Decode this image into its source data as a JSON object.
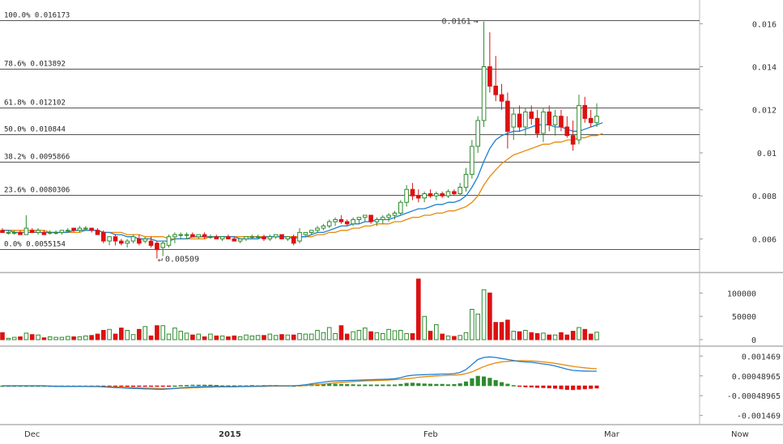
{
  "chart_data": {
    "type": "candlestick",
    "x_ticks": [
      "Dec",
      "2015",
      "Feb",
      "Mar",
      "Now"
    ],
    "price_axis": {
      "ylim": [
        0.0047,
        0.0168
      ],
      "ticks": [
        "0.016",
        "0.014",
        "0.012",
        "0.01",
        "0.008",
        "0.006"
      ]
    },
    "volume_axis": {
      "ylim": [
        0,
        130000
      ],
      "ticks": [
        "100000",
        "50000",
        "0"
      ]
    },
    "macd_axis": {
      "ylim": [
        -0.0018,
        0.0018
      ],
      "ticks": [
        "0.001469",
        "0.00048965",
        "-0.00048965",
        "-0.001469"
      ]
    },
    "fib_levels": [
      {
        "label": "100.0% 0.016173",
        "value": 0.016173
      },
      {
        "label": "78.6% 0.013892",
        "value": 0.013892
      },
      {
        "label": "61.8% 0.012102",
        "value": 0.012102
      },
      {
        "label": "50.0% 0.010844",
        "value": 0.010844
      },
      {
        "label": "38.2% 0.0095866",
        "value": 0.0095866
      },
      {
        "label": "23.6% 0.0080306",
        "value": 0.0080306
      },
      {
        "label": "0.0% 0.0055154",
        "value": 0.0055154
      }
    ],
    "annotations": {
      "high_label": "0.0161",
      "low_label": "0.00509"
    },
    "colors": {
      "up": "#2e8b2e",
      "down": "#dd1111",
      "ma_fast": "#1e7fd0",
      "ma_slow": "#e88a0c",
      "grid": "#444444"
    },
    "candles": [
      [
        0.0064,
        0.0065,
        0.0063,
        0.0063
      ],
      [
        0.0063,
        0.0064,
        0.0062,
        0.0063
      ],
      [
        0.0063,
        0.0064,
        0.0062,
        0.0063
      ],
      [
        0.0063,
        0.0064,
        0.0062,
        0.0062
      ],
      [
        0.0062,
        0.0071,
        0.0062,
        0.0065
      ],
      [
        0.0064,
        0.0065,
        0.0063,
        0.0063
      ],
      [
        0.0063,
        0.0065,
        0.0062,
        0.0064
      ],
      [
        0.0063,
        0.0064,
        0.0062,
        0.0062
      ],
      [
        0.0063,
        0.0064,
        0.0062,
        0.0063
      ],
      [
        0.0063,
        0.0064,
        0.0062,
        0.0063
      ],
      [
        0.0063,
        0.0064,
        0.0062,
        0.0064
      ],
      [
        0.0064,
        0.0065,
        0.0063,
        0.0064
      ],
      [
        0.0065,
        0.0065,
        0.0063,
        0.0064
      ],
      [
        0.0064,
        0.0066,
        0.0063,
        0.0065
      ],
      [
        0.0065,
        0.0066,
        0.0064,
        0.0065
      ],
      [
        0.0065,
        0.0065,
        0.0063,
        0.0064
      ],
      [
        0.0064,
        0.0065,
        0.0062,
        0.0062
      ],
      [
        0.0063,
        0.0064,
        0.0058,
        0.0059
      ],
      [
        0.0059,
        0.0061,
        0.0057,
        0.0061
      ],
      [
        0.0061,
        0.0062,
        0.0057,
        0.0059
      ],
      [
        0.0059,
        0.006,
        0.0057,
        0.0058
      ],
      [
        0.0058,
        0.006,
        0.0056,
        0.0059
      ],
      [
        0.0059,
        0.0062,
        0.0058,
        0.0061
      ],
      [
        0.006,
        0.0062,
        0.0057,
        0.0058
      ],
      [
        0.0059,
        0.0061,
        0.0058,
        0.006
      ],
      [
        0.0059,
        0.0061,
        0.0056,
        0.0057
      ],
      [
        0.0058,
        0.0059,
        0.00509,
        0.0055
      ],
      [
        0.0056,
        0.0059,
        0.0052,
        0.0058
      ],
      [
        0.0057,
        0.0062,
        0.0056,
        0.0061
      ],
      [
        0.0061,
        0.0063,
        0.0058,
        0.0062
      ],
      [
        0.0062,
        0.0063,
        0.006,
        0.0062
      ],
      [
        0.0062,
        0.0063,
        0.006,
        0.0062
      ],
      [
        0.0062,
        0.0063,
        0.0061,
        0.0061
      ],
      [
        0.0061,
        0.0062,
        0.006,
        0.0062
      ],
      [
        0.0062,
        0.0063,
        0.006,
        0.0061
      ],
      [
        0.0061,
        0.0062,
        0.006,
        0.0061
      ],
      [
        0.0061,
        0.0062,
        0.006,
        0.006
      ],
      [
        0.006,
        0.0061,
        0.0059,
        0.0061
      ],
      [
        0.0061,
        0.0062,
        0.006,
        0.006
      ],
      [
        0.006,
        0.0061,
        0.0059,
        0.0059
      ],
      [
        0.0059,
        0.006,
        0.0058,
        0.006
      ],
      [
        0.006,
        0.0061,
        0.0059,
        0.0061
      ],
      [
        0.0061,
        0.0062,
        0.006,
        0.0061
      ],
      [
        0.0061,
        0.0062,
        0.006,
        0.0061
      ],
      [
        0.0061,
        0.0062,
        0.0059,
        0.006
      ],
      [
        0.006,
        0.0062,
        0.0059,
        0.0061
      ],
      [
        0.0061,
        0.0062,
        0.006,
        0.0062
      ],
      [
        0.0062,
        0.0062,
        0.006,
        0.006
      ],
      [
        0.006,
        0.0061,
        0.0059,
        0.0061
      ],
      [
        0.0061,
        0.0062,
        0.0057,
        0.0058
      ],
      [
        0.0059,
        0.0065,
        0.0058,
        0.0063
      ],
      [
        0.0062,
        0.0063,
        0.0061,
        0.0063
      ],
      [
        0.0063,
        0.0064,
        0.0062,
        0.0064
      ],
      [
        0.0064,
        0.0066,
        0.0063,
        0.0065
      ],
      [
        0.0065,
        0.0067,
        0.0064,
        0.0066
      ],
      [
        0.0066,
        0.0069,
        0.0065,
        0.0068
      ],
      [
        0.0068,
        0.007,
        0.0066,
        0.0069
      ],
      [
        0.0069,
        0.0071,
        0.0067,
        0.0068
      ],
      [
        0.0068,
        0.0069,
        0.0066,
        0.0067
      ],
      [
        0.0067,
        0.007,
        0.0066,
        0.0069
      ],
      [
        0.0069,
        0.007,
        0.0067,
        0.007
      ],
      [
        0.007,
        0.0071,
        0.0068,
        0.0071
      ],
      [
        0.0071,
        0.0071,
        0.0067,
        0.0068
      ],
      [
        0.0068,
        0.007,
        0.0066,
        0.0069
      ],
      [
        0.0069,
        0.0071,
        0.0067,
        0.007
      ],
      [
        0.007,
        0.0072,
        0.0068,
        0.0071
      ],
      [
        0.0071,
        0.0073,
        0.0069,
        0.0072
      ],
      [
        0.0072,
        0.0078,
        0.0071,
        0.0077
      ],
      [
        0.0077,
        0.0085,
        0.0075,
        0.0083
      ],
      [
        0.0083,
        0.0086,
        0.0078,
        0.008
      ],
      [
        0.008,
        0.0083,
        0.0077,
        0.0079
      ],
      [
        0.0079,
        0.0082,
        0.0077,
        0.0081
      ],
      [
        0.0081,
        0.0083,
        0.0079,
        0.008
      ],
      [
        0.008,
        0.0082,
        0.0078,
        0.0081
      ],
      [
        0.0081,
        0.0082,
        0.0079,
        0.008
      ],
      [
        0.008,
        0.0083,
        0.0079,
        0.0082
      ],
      [
        0.0082,
        0.0083,
        0.008,
        0.0081
      ],
      [
        0.0081,
        0.0086,
        0.008,
        0.0084
      ],
      [
        0.0084,
        0.0093,
        0.0082,
        0.009
      ],
      [
        0.009,
        0.0106,
        0.0088,
        0.0103
      ],
      [
        0.0103,
        0.0117,
        0.01,
        0.0115
      ],
      [
        0.0115,
        0.0161,
        0.0112,
        0.014
      ],
      [
        0.014,
        0.0156,
        0.0128,
        0.0131
      ],
      [
        0.0131,
        0.0145,
        0.0124,
        0.0127
      ],
      [
        0.0127,
        0.0132,
        0.012,
        0.0124
      ],
      [
        0.0124,
        0.0128,
        0.0102,
        0.011
      ],
      [
        0.0112,
        0.0121,
        0.0106,
        0.0118
      ],
      [
        0.0118,
        0.0122,
        0.011,
        0.0112
      ],
      [
        0.0112,
        0.0121,
        0.0108,
        0.0119
      ],
      [
        0.0119,
        0.0122,
        0.0113,
        0.0116
      ],
      [
        0.0116,
        0.012,
        0.0107,
        0.0109
      ],
      [
        0.0109,
        0.0121,
        0.0105,
        0.0119
      ],
      [
        0.0119,
        0.0122,
        0.011,
        0.0113
      ],
      [
        0.0113,
        0.012,
        0.0108,
        0.0117
      ],
      [
        0.0117,
        0.012,
        0.011,
        0.0112
      ],
      [
        0.0112,
        0.0117,
        0.0107,
        0.0108
      ],
      [
        0.0108,
        0.0115,
        0.0101,
        0.0104
      ],
      [
        0.0106,
        0.0127,
        0.0104,
        0.0122
      ],
      [
        0.0122,
        0.0126,
        0.0114,
        0.0116
      ],
      [
        0.0116,
        0.012,
        0.0112,
        0.0114
      ],
      [
        0.0114,
        0.0123,
        0.0112,
        0.0117
      ]
    ],
    "ma_fast": [
      0.0064,
      0.0064,
      0.0063,
      0.0063,
      0.0063,
      0.0063,
      0.0063,
      0.0063,
      0.0063,
      0.0063,
      0.0063,
      0.0063,
      0.0064,
      0.0064,
      0.0064,
      0.0064,
      0.0064,
      0.0063,
      0.0063,
      0.0062,
      0.0062,
      0.0061,
      0.0061,
      0.006,
      0.006,
      0.006,
      0.0059,
      0.0059,
      0.0059,
      0.006,
      0.006,
      0.006,
      0.0061,
      0.0061,
      0.0061,
      0.0061,
      0.0061,
      0.0061,
      0.0061,
      0.0061,
      0.006,
      0.006,
      0.006,
      0.006,
      0.0061,
      0.0061,
      0.0061,
      0.0061,
      0.0061,
      0.006,
      0.0061,
      0.0061,
      0.0062,
      0.0063,
      0.0063,
      0.0064,
      0.0065,
      0.0066,
      0.0066,
      0.0067,
      0.0067,
      0.0068,
      0.0068,
      0.0069,
      0.0069,
      0.0069,
      0.007,
      0.0071,
      0.0072,
      0.0073,
      0.0074,
      0.0074,
      0.0075,
      0.0076,
      0.0076,
      0.0077,
      0.0077,
      0.0078,
      0.008,
      0.0084,
      0.0089,
      0.0096,
      0.0102,
      0.0106,
      0.0108,
      0.0109,
      0.011,
      0.011,
      0.0111,
      0.0112,
      0.0113,
      0.0113,
      0.0113,
      0.0112,
      0.0112,
      0.0111,
      0.011,
      0.011,
      0.0111,
      0.0112,
      0.0113,
      0.0114
    ],
    "ma_slow": [
      0.0064,
      0.0064,
      0.0064,
      0.0064,
      0.0064,
      0.0064,
      0.0064,
      0.0064,
      0.0063,
      0.0063,
      0.0063,
      0.0063,
      0.0063,
      0.0063,
      0.0064,
      0.0064,
      0.0064,
      0.0063,
      0.0063,
      0.0063,
      0.0063,
      0.0062,
      0.0062,
      0.0062,
      0.0061,
      0.0061,
      0.0061,
      0.0061,
      0.006,
      0.006,
      0.006,
      0.006,
      0.006,
      0.006,
      0.006,
      0.0061,
      0.0061,
      0.0061,
      0.0061,
      0.0061,
      0.0061,
      0.0061,
      0.0061,
      0.0061,
      0.0061,
      0.0061,
      0.0061,
      0.0061,
      0.0061,
      0.0061,
      0.0061,
      0.0061,
      0.0061,
      0.0062,
      0.0062,
      0.0063,
      0.0063,
      0.0064,
      0.0064,
      0.0065,
      0.0065,
      0.0066,
      0.0066,
      0.0067,
      0.0067,
      0.0067,
      0.0068,
      0.0068,
      0.0069,
      0.007,
      0.007,
      0.0071,
      0.0071,
      0.0072,
      0.0072,
      0.0073,
      0.0073,
      0.0074,
      0.0075,
      0.0077,
      0.008,
      0.0085,
      0.0089,
      0.0092,
      0.0095,
      0.0097,
      0.0099,
      0.01,
      0.0101,
      0.0102,
      0.0103,
      0.0104,
      0.0104,
      0.0105,
      0.0105,
      0.0106,
      0.0106,
      0.0107,
      0.0107,
      0.0108,
      0.0108,
      0.0109
    ],
    "volume": [
      15000,
      3000,
      5000,
      6000,
      14000,
      11000,
      10000,
      4000,
      6000,
      5000,
      5000,
      7000,
      6000,
      6000,
      8000,
      9000,
      12000,
      20000,
      22000,
      12000,
      25000,
      20000,
      11000,
      22000,
      28000,
      8000,
      30000,
      30000,
      12000,
      25000,
      18000,
      14000,
      10000,
      12000,
      6000,
      12000,
      8000,
      8000,
      6000,
      8000,
      6000,
      10000,
      8000,
      9000,
      9000,
      12000,
      9000,
      11000,
      10000,
      10000,
      13000,
      12000,
      12000,
      20000,
      15000,
      26000,
      13000,
      30000,
      12000,
      17000,
      20000,
      25000,
      17000,
      15000,
      13000,
      22000,
      19000,
      20000,
      13000,
      13000,
      130000,
      50000,
      18000,
      32000,
      12000,
      8000,
      7000,
      9000,
      15000,
      65000,
      55000,
      107000,
      100000,
      37000,
      37000,
      42000,
      18000,
      17000,
      20000,
      15000,
      13000,
      14000,
      10000,
      10000,
      15000,
      10000,
      18000,
      26000,
      22000,
      12000,
      16000
    ],
    "macd_line": [
      0.0,
      0.0,
      0.0,
      0.0,
      0.0,
      0.0,
      0.0,
      0.0,
      -2e-05,
      -3e-05,
      -3e-05,
      -3e-05,
      -3e-05,
      -3e-05,
      -3e-05,
      -4e-05,
      -4e-05,
      -5e-05,
      -7e-05,
      -9e-05,
      -0.0001,
      -0.00012,
      -0.00013,
      -0.00014,
      -0.00015,
      -0.00016,
      -0.00017,
      -0.00017,
      -0.00015,
      -0.00013,
      -0.0001,
      -8e-05,
      -6e-05,
      -5e-05,
      -4e-05,
      -3e-05,
      -3e-05,
      -4e-05,
      -4e-05,
      -4e-05,
      -3e-05,
      -3e-05,
      -2e-05,
      -2e-05,
      -1e-05,
      0.0,
      0.0,
      0.0,
      0.0,
      0.0,
      2e-05,
      5e-05,
      0.0001,
      0.00014,
      0.00018,
      0.00022,
      0.00024,
      0.00025,
      0.00026,
      0.00027,
      0.00028,
      0.00029,
      0.0003,
      0.00031,
      0.00032,
      0.00033,
      0.00035,
      0.0004,
      0.00048,
      0.00052,
      0.00054,
      0.00055,
      0.00056,
      0.00057,
      0.00058,
      0.00058,
      0.0006,
      0.00066,
      0.0008,
      0.00105,
      0.0013,
      0.0014,
      0.00143,
      0.0014,
      0.00135,
      0.0013,
      0.00125,
      0.0012,
      0.00118,
      0.00116,
      0.00112,
      0.00108,
      0.00104,
      0.00098,
      0.0009,
      0.00082,
      0.00076,
      0.00074,
      0.00073,
      0.00072,
      0.00072
    ],
    "macd_signal": [
      0.0,
      0.0,
      0.0,
      0.0,
      0.0,
      0.0,
      0.0,
      0.0,
      -1e-05,
      -2e-05,
      -2e-05,
      -3e-05,
      -3e-05,
      -3e-05,
      -3e-05,
      -3e-05,
      -3e-05,
      -4e-05,
      -5e-05,
      -6e-05,
      -7e-05,
      -8e-05,
      -9e-05,
      -0.0001,
      -0.00011,
      -0.00012,
      -0.00013,
      -0.00014,
      -0.00014,
      -0.00013,
      -0.00012,
      -0.00011,
      -0.0001,
      -9e-05,
      -8e-05,
      -7e-05,
      -6e-05,
      -5e-05,
      -5e-05,
      -5e-05,
      -4e-05,
      -4e-05,
      -4e-05,
      -3e-05,
      -3e-05,
      -2e-05,
      -2e-05,
      -1e-05,
      -1e-05,
      0.0,
      0.0,
      1e-05,
      3e-05,
      6e-05,
      9e-05,
      0.00012,
      0.00015,
      0.00017,
      0.00019,
      0.00021,
      0.00023,
      0.00024,
      0.00025,
      0.00026,
      0.00027,
      0.00028,
      0.0003,
      0.00032,
      0.00035,
      0.00038,
      0.00042,
      0.00045,
      0.00047,
      0.00049,
      0.0005,
      0.00052,
      0.00053,
      0.00055,
      0.0006,
      0.00069,
      0.00082,
      0.00095,
      0.00105,
      0.00113,
      0.00118,
      0.00121,
      0.00123,
      0.00124,
      0.00124,
      0.00123,
      0.00121,
      0.00118,
      0.00115,
      0.00111,
      0.00106,
      0.00101,
      0.00096,
      0.00092,
      0.00089,
      0.00086,
      0.00084
    ]
  }
}
